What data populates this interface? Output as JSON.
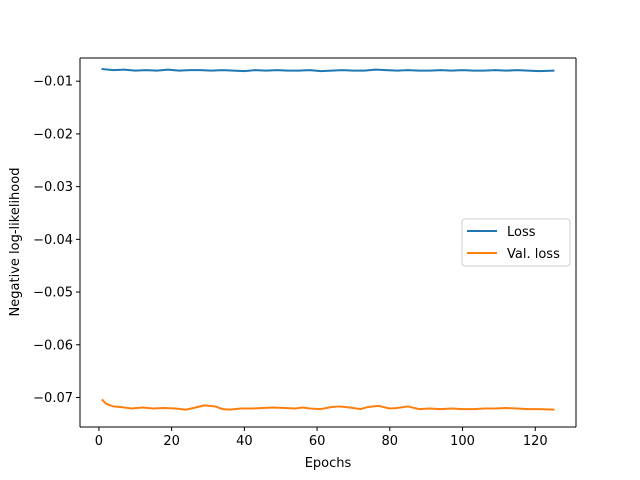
{
  "chart_data": {
    "type": "line",
    "title": "",
    "xlabel": "Epochs",
    "ylabel": "Negative log-likelihood",
    "xlim": [
      -5.2,
      131.2
    ],
    "ylim": [
      -0.0756,
      -0.0056
    ],
    "xticks": [
      0,
      20,
      40,
      60,
      80,
      100,
      120
    ],
    "yticks": [
      -0.01,
      -0.02,
      -0.03,
      -0.04,
      -0.05,
      -0.06,
      -0.07
    ],
    "ytick_labels": [
      "−0.01",
      "−0.02",
      "−0.03",
      "−0.04",
      "−0.05",
      "−0.06",
      "−0.07"
    ],
    "grid": false,
    "legend": {
      "placement": "center-right"
    },
    "series": [
      {
        "name": "Loss",
        "color": "#1f77b4",
        "x": [
          1,
          4,
          7,
          10,
          13,
          16,
          19,
          22,
          25,
          28,
          31,
          34,
          37,
          40,
          43,
          46,
          49,
          52,
          55,
          58,
          61,
          64,
          67,
          70,
          73,
          76,
          79,
          82,
          85,
          88,
          91,
          94,
          97,
          100,
          103,
          106,
          109,
          112,
          115,
          118,
          121,
          125
        ],
        "y": [
          -0.0077,
          -0.0079,
          -0.0078,
          -0.008,
          -0.0079,
          -0.008,
          -0.0078,
          -0.008,
          -0.0079,
          -0.0079,
          -0.008,
          -0.0079,
          -0.008,
          -0.0081,
          -0.0079,
          -0.008,
          -0.0079,
          -0.008,
          -0.008,
          -0.0079,
          -0.0081,
          -0.008,
          -0.0079,
          -0.008,
          -0.008,
          -0.0078,
          -0.0079,
          -0.008,
          -0.0079,
          -0.008,
          -0.008,
          -0.0079,
          -0.008,
          -0.0079,
          -0.008,
          -0.008,
          -0.0079,
          -0.008,
          -0.0079,
          -0.008,
          -0.0081,
          -0.008
        ]
      },
      {
        "name": "Val. loss",
        "color": "#ff7f0e",
        "x": [
          1,
          2,
          4,
          6,
          9,
          12,
          15,
          18,
          21,
          24,
          26,
          29,
          32,
          34,
          36,
          39,
          42,
          45,
          48,
          51,
          54,
          56,
          58,
          61,
          64,
          66,
          69,
          72,
          74,
          77,
          80,
          82,
          85,
          88,
          91,
          94,
          97,
          100,
          103,
          106,
          109,
          112,
          115,
          118,
          121,
          125
        ],
        "y": [
          -0.0705,
          -0.0712,
          -0.0717,
          -0.0718,
          -0.0721,
          -0.0719,
          -0.0721,
          -0.072,
          -0.0721,
          -0.0723,
          -0.072,
          -0.0715,
          -0.0717,
          -0.0722,
          -0.0723,
          -0.0721,
          -0.0721,
          -0.072,
          -0.0719,
          -0.072,
          -0.0721,
          -0.0719,
          -0.0721,
          -0.0722,
          -0.0718,
          -0.0717,
          -0.0719,
          -0.0722,
          -0.0718,
          -0.0716,
          -0.0721,
          -0.072,
          -0.0717,
          -0.0722,
          -0.0721,
          -0.0722,
          -0.0721,
          -0.0722,
          -0.0722,
          -0.0721,
          -0.0721,
          -0.072,
          -0.0721,
          -0.0722,
          -0.0722,
          -0.0723
        ]
      }
    ]
  }
}
